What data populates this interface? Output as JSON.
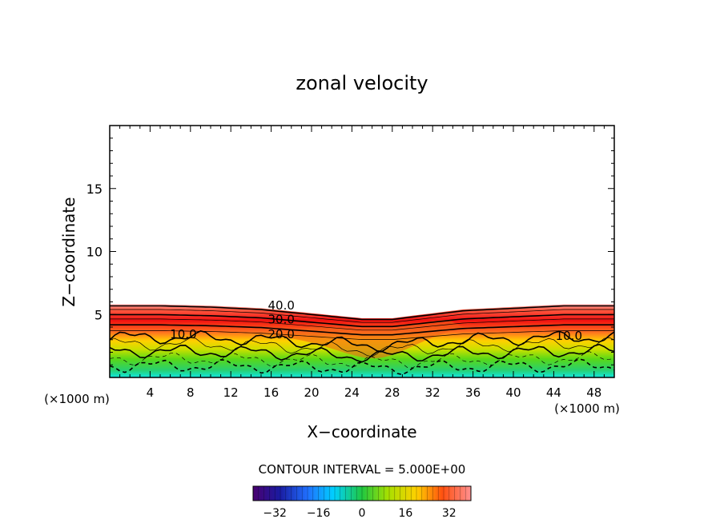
{
  "chart_data": {
    "type": "heatmap",
    "title": "zonal velocity",
    "xlabel": "X−coordinate",
    "ylabel": "Z−coordinate",
    "x_unit_left": "(×1000 m)",
    "x_unit_right": "(×1000 m)",
    "x_ticks": [
      "4",
      "8",
      "12",
      "16",
      "20",
      "24",
      "28",
      "32",
      "36",
      "40",
      "44",
      "48"
    ],
    "y_ticks": [
      "5",
      "10",
      "15"
    ],
    "xlim": [
      0,
      50
    ],
    "ylim": [
      0,
      20
    ],
    "contour_interval_text": "CONTOUR INTERVAL = 5.000E+00",
    "contour_labels": [
      {
        "text": "40.0",
        "x": 17.0,
        "y": 5.4
      },
      {
        "text": "30.0",
        "x": 17.0,
        "y": 4.3
      },
      {
        "text": "20.0",
        "x": 17.0,
        "y": 3.1
      },
      {
        "text": "10.0",
        "x": 7.3,
        "y": 3.1
      },
      {
        "text": "10.0",
        "x": 45.5,
        "y": 3.0
      }
    ],
    "colorbar": {
      "range": [
        -40,
        40
      ],
      "ticks": [
        "−32",
        "−16",
        "0",
        "16",
        "32"
      ],
      "tick_values": [
        -32,
        -16,
        0,
        16,
        32
      ]
    },
    "field_top": {
      "x": [
        0,
        5,
        10,
        15,
        20,
        25,
        28,
        31,
        35,
        40,
        45,
        50
      ],
      "z": [
        5.8,
        5.8,
        5.7,
        5.5,
        5.1,
        4.7,
        4.7,
        5.0,
        5.4,
        5.6,
        5.8,
        5.8
      ]
    }
  }
}
